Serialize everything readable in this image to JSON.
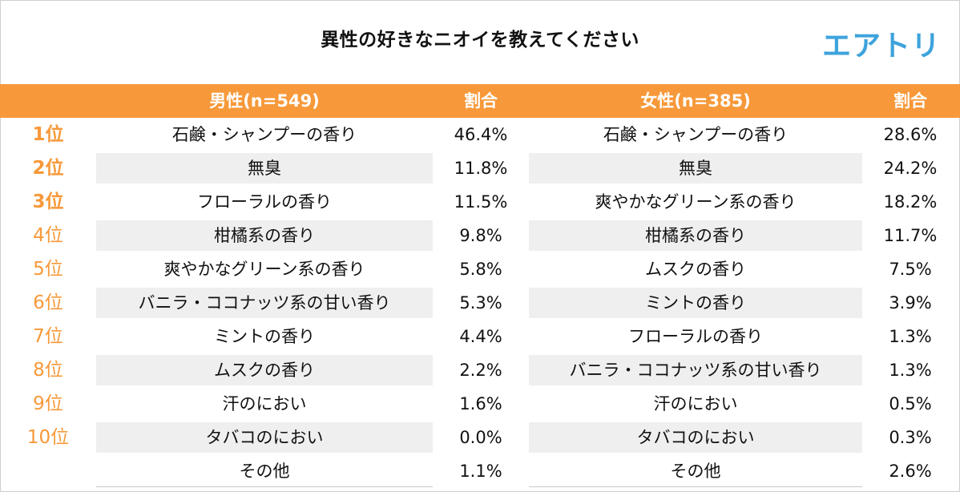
{
  "title": "異性の好きなニオイを教えてください",
  "logo": "エアトリ",
  "colors": {
    "accent": "#f7993a",
    "logo": "#3ea3dc",
    "shade": "#efefef"
  },
  "table": {
    "headers": {
      "male": "男性(n=549)",
      "male_share": "割合",
      "female": "女性(n=385)",
      "female_share": "割合"
    },
    "rows": [
      {
        "rank": "1位",
        "male": "石鹸・シャンプーの香り",
        "male_pct": "46.4%",
        "female": "石鹸・シャンプーの香り",
        "female_pct": "28.6%"
      },
      {
        "rank": "2位",
        "male": "無臭",
        "male_pct": "11.8%",
        "female": "無臭",
        "female_pct": "24.2%"
      },
      {
        "rank": "3位",
        "male": "フローラルの香り",
        "male_pct": "11.5%",
        "female": "爽やかなグリーン系の香り",
        "female_pct": "18.2%"
      },
      {
        "rank": "4位",
        "male": "柑橘系の香り",
        "male_pct": "9.8%",
        "female": "柑橘系の香り",
        "female_pct": "11.7%"
      },
      {
        "rank": "5位",
        "male": "爽やかなグリーン系の香り",
        "male_pct": "5.8%",
        "female": "ムスクの香り",
        "female_pct": "7.5%"
      },
      {
        "rank": "6位",
        "male": "バニラ・ココナッツ系の甘い香り",
        "male_pct": "5.3%",
        "female": "ミントの香り",
        "female_pct": "3.9%"
      },
      {
        "rank": "7位",
        "male": "ミントの香り",
        "male_pct": "4.4%",
        "female": "フローラルの香り",
        "female_pct": "1.3%"
      },
      {
        "rank": "8位",
        "male": "ムスクの香り",
        "male_pct": "2.2%",
        "female": "バニラ・ココナッツ系の甘い香り",
        "female_pct": "1.3%"
      },
      {
        "rank": "9位",
        "male": "汗のにおい",
        "male_pct": "1.6%",
        "female": "汗のにおい",
        "female_pct": "0.5%"
      },
      {
        "rank": "10位",
        "male": "タバコのにおい",
        "male_pct": "0.0%",
        "female": "タバコのにおい",
        "female_pct": "0.3%"
      },
      {
        "rank": "",
        "male": "その他",
        "male_pct": "1.1%",
        "female": "その他",
        "female_pct": "2.6%"
      }
    ]
  }
}
